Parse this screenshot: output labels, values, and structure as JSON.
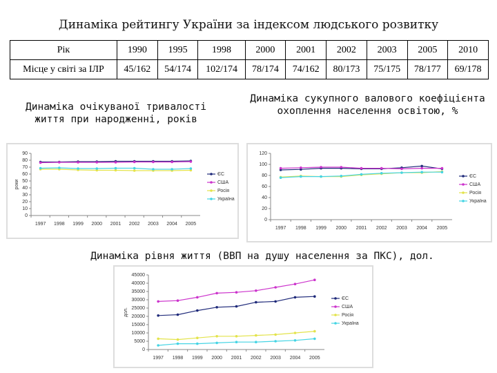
{
  "title": "Динаміка рейтингу України за індексом людського розвитку",
  "table": {
    "rows": [
      [
        "Рік",
        "1990",
        "1995",
        "1998",
        "2000",
        "2001",
        "2002",
        "2003",
        "2005",
        "2010"
      ],
      [
        "Місце у світі за ІЛР",
        "45/162",
        "54/174",
        "102/174",
        "78/174",
        "74/162",
        "80/173",
        "75/175",
        "78/177",
        "69/178"
      ]
    ]
  },
  "chart_data": [
    {
      "type": "line",
      "title": "Динаміка очікуваної тривалості життя при народженні, років",
      "ylabel": "роки",
      "categories": [
        "1997",
        "1998",
        "1999",
        "2000",
        "2001",
        "2002",
        "2003",
        "2004",
        "2005"
      ],
      "ylim": [
        0,
        90
      ],
      "yticks": [
        0,
        10,
        20,
        30,
        40,
        50,
        60,
        70,
        80,
        90
      ],
      "series": [
        {
          "name": "ЄС",
          "color": "#1f2a7a",
          "values": [
            77.5,
            77.5,
            78,
            78,
            78.5,
            78.5,
            78.5,
            78.5,
            79
          ]
        },
        {
          "name": "США",
          "color": "#cc33cc",
          "values": [
            76.5,
            77,
            77,
            77,
            77,
            77.5,
            77.5,
            77.5,
            78
          ]
        },
        {
          "name": "Росія",
          "color": "#e3e34a",
          "values": [
            67,
            67,
            66,
            65.5,
            65.5,
            65,
            65,
            65,
            65.5
          ]
        },
        {
          "name": "Україна",
          "color": "#44d4e4",
          "values": [
            68.5,
            69,
            68,
            68,
            68.5,
            68.5,
            67,
            67,
            68
          ]
        }
      ]
    },
    {
      "type": "line",
      "title": "Динаміка сукупного валового коефіцієнта охоплення населення освітою, %",
      "categories": [
        "1997",
        "1998",
        "1999",
        "2000",
        "2001",
        "2002",
        "2003",
        "2004",
        "2005"
      ],
      "ylim": [
        0,
        120
      ],
      "yticks": [
        0,
        20,
        40,
        60,
        80,
        100,
        120
      ],
      "series": [
        {
          "name": "ЄС",
          "color": "#1f2a7a",
          "values": [
            90,
            91,
            93,
            93,
            92,
            92,
            94,
            97,
            92
          ]
        },
        {
          "name": "США",
          "color": "#cc33cc",
          "values": [
            93,
            94,
            95,
            95,
            93,
            93,
            92,
            93,
            93
          ]
        },
        {
          "name": "Росія",
          "color": "#e3e34a",
          "values": [
            77,
            79,
            78,
            78,
            81,
            83,
            85,
            85,
            87
          ]
        },
        {
          "name": "Україна",
          "color": "#44d4e4",
          "values": [
            76,
            78,
            78,
            79,
            82,
            84,
            85,
            86,
            86
          ]
        }
      ]
    },
    {
      "type": "line",
      "title": "Динаміка рівня життя (ВВП на душу населення за ПКС), дол.",
      "ylabel": "дол.",
      "categories": [
        "1997",
        "1998",
        "1999",
        "2000",
        "2001",
        "2002",
        "2003",
        "2004",
        "2005"
      ],
      "ylim": [
        0,
        45000
      ],
      "yticks": [
        0,
        5000,
        10000,
        15000,
        20000,
        25000,
        30000,
        35000,
        40000,
        45000
      ],
      "series": [
        {
          "name": "ЄС",
          "color": "#1f2a7a",
          "values": [
            20500,
            21000,
            23500,
            25500,
            26000,
            28500,
            29000,
            31500,
            32000
          ]
        },
        {
          "name": "США",
          "color": "#cc33cc",
          "values": [
            29000,
            29500,
            31500,
            34000,
            34500,
            35500,
            37500,
            39500,
            42000
          ]
        },
        {
          "name": "Росія",
          "color": "#e3e34a",
          "values": [
            6500,
            6000,
            7000,
            8000,
            8000,
            8500,
            9000,
            10000,
            11000
          ]
        },
        {
          "name": "Україна",
          "color": "#44d4e4",
          "values": [
            2500,
            3500,
            3500,
            4000,
            4500,
            4500,
            5000,
            5500,
            6500
          ]
        }
      ]
    }
  ]
}
